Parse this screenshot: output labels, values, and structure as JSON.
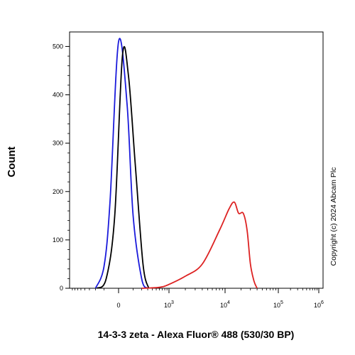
{
  "chart_data": {
    "type": "line",
    "xlabel": "14-3-3 zeta - Alexa Fluor® 488 (530/30 BP)",
    "ylabel": "Count",
    "x_scale": "biexponential",
    "ylim": [
      0,
      530
    ],
    "y_ticks": [
      0,
      100,
      200,
      300,
      400,
      500
    ],
    "x_ticks": [
      {
        "base": "0",
        "exp": ""
      },
      {
        "base": "10",
        "exp": "3"
      },
      {
        "base": "10",
        "exp": "4"
      },
      {
        "base": "10",
        "exp": "5"
      },
      {
        "base": "10",
        "exp": "6"
      }
    ],
    "series": [
      {
        "color": "#1a1adb",
        "x": [
          -200,
          -100,
          -50,
          0,
          50,
          100,
          200,
          300
        ],
        "y": [
          0,
          45,
          180,
          510,
          380,
          150,
          20,
          0
        ]
      },
      {
        "color": "#000000",
        "x": [
          -180,
          -80,
          -20,
          20,
          60,
          120,
          220,
          320
        ],
        "y": [
          0,
          20,
          150,
          480,
          440,
          260,
          50,
          0
        ]
      },
      {
        "color": "#dd2222",
        "x": [
          200,
          600,
          1000,
          2000,
          4000,
          8000,
          12000,
          15000,
          18000,
          22000,
          26000,
          30000,
          35000,
          40000
        ],
        "y": [
          0,
          2,
          8,
          25,
          50,
          120,
          165,
          178,
          155,
          155,
          120,
          50,
          15,
          0
        ]
      }
    ],
    "watermark": "Copyright (c) 2024 Abcam Plc"
  }
}
